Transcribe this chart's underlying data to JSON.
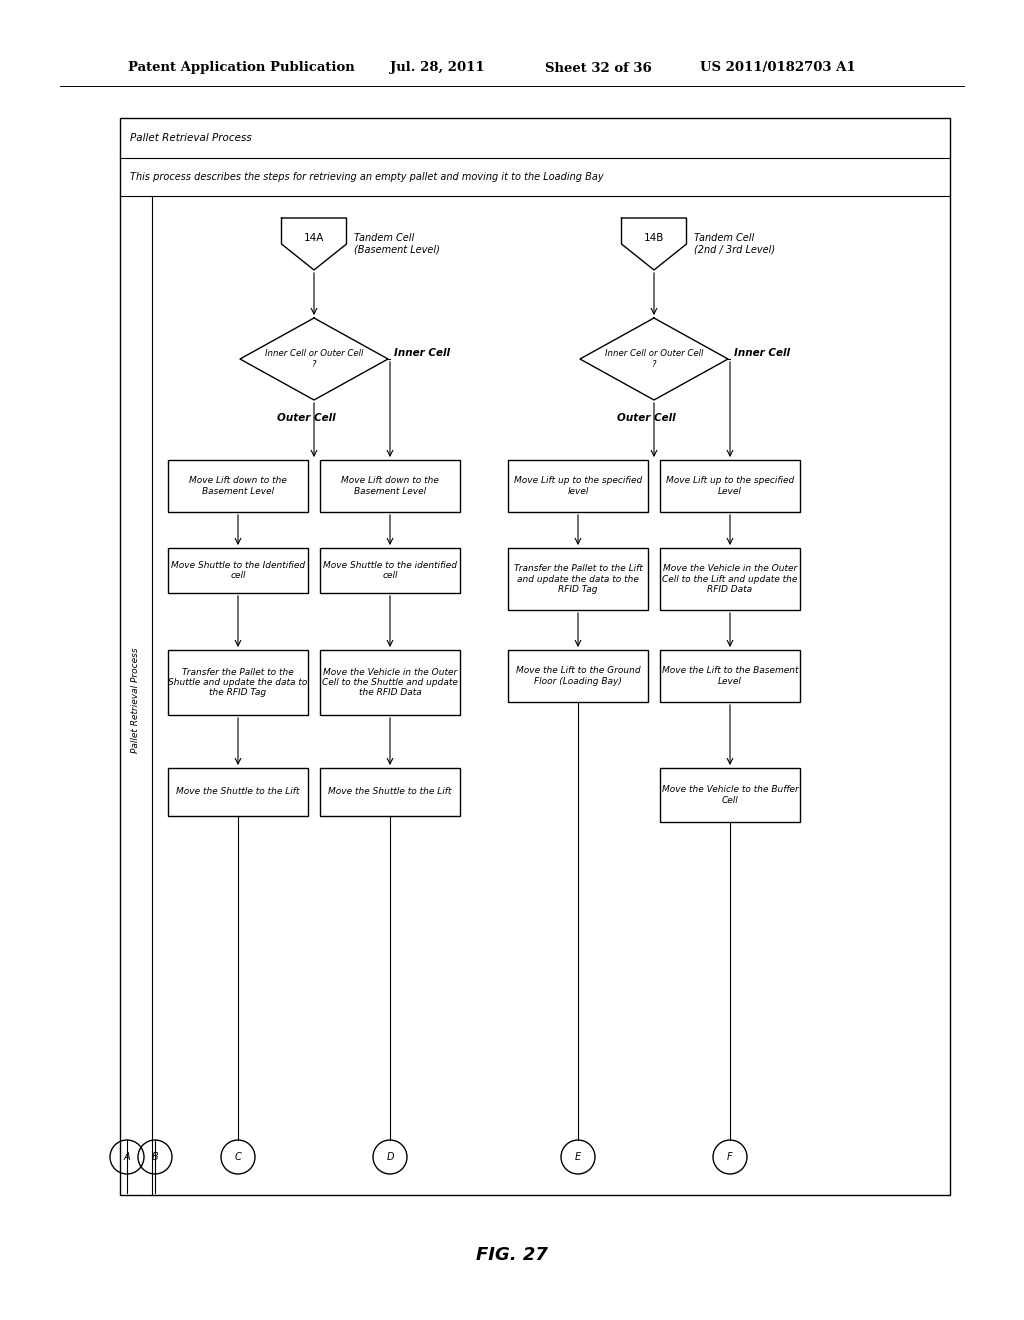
{
  "title_header": "Patent Application Publication",
  "date_header": "Jul. 28, 2011",
  "sheet_header": "Sheet 32 of 36",
  "patent_header": "US 2011/0182703 A1",
  "fig_label": "FIG. 27",
  "process_title": "Pallet Retrieval Process",
  "process_desc": "This process describes the steps for retrieving an empty pallet and moving it to the Loading Bay",
  "side_label": "Pallet Retrieval Process",
  "node_14A_label": "14A",
  "node_14A_desc": "Tandem Cell\n(Basement Level)",
  "node_14B_label": "14B",
  "node_14B_desc": "Tandem Cell\n(2nd / 3rd Level)",
  "diamond_left_text": "Inner Cell or Outer Cell\n?",
  "diamond_right_text": "Inner Cell or Outer Cell\n?",
  "inner_cell_label": "Inner Cell",
  "outer_cell_label": "Outer Cell",
  "col1_row1": "Move Lift down to the\nBasement Level",
  "col2_row1": "Move Lift down to the\nBasement Level",
  "col3_row1": "Move Lift up to the specified\nlevel",
  "col4_row1": "Move Lift up to the specified\nLevel",
  "col1_row2": "Move Shuttle to the Identified\ncell",
  "col2_row2": "Move Shuttle to the identified\ncell",
  "col3_row2": "Transfer the Pallet to the Lift\nand update the data to the\nRFID Tag",
  "col4_row2": "Move the Vehicle in the Outer\nCell to the Lift and update the\nRFID Data",
  "col1_row3": "Transfer the Pallet to the\nShuttle and update the data to\nthe RFID Tag",
  "col2_row3": "Move the Vehicle in the Outer\nCell to the Shuttle and update\nthe RFID Data",
  "col3_row3": "Move the Lift to the Ground\nFloor (Loading Bay)",
  "col4_row3": "Move the Lift to the Basement\nLevel",
  "col1_row4": "Move the Shuttle to the Lift",
  "col2_row4": "Move the Shuttle to the Lift",
  "col4_row4": "Move the Vehicle to the Buffer\nCell",
  "bg_color": "#ffffff"
}
